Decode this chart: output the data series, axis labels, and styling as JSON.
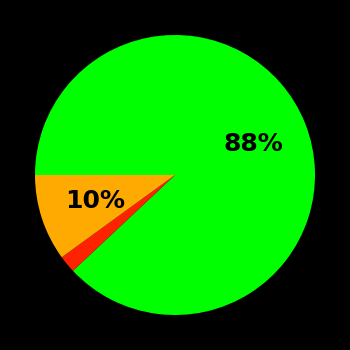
{
  "slices": [
    88,
    2,
    10
  ],
  "colors": [
    "#00ff00",
    "#ff2200",
    "#ffaa00"
  ],
  "labels": [
    "88%",
    "",
    "10%"
  ],
  "background_color": "#000000",
  "text_color": "#000000",
  "fontsize": 18,
  "startangle": 180,
  "figsize": [
    3.5,
    3.5
  ],
  "dpi": 100,
  "label_r": 0.6
}
